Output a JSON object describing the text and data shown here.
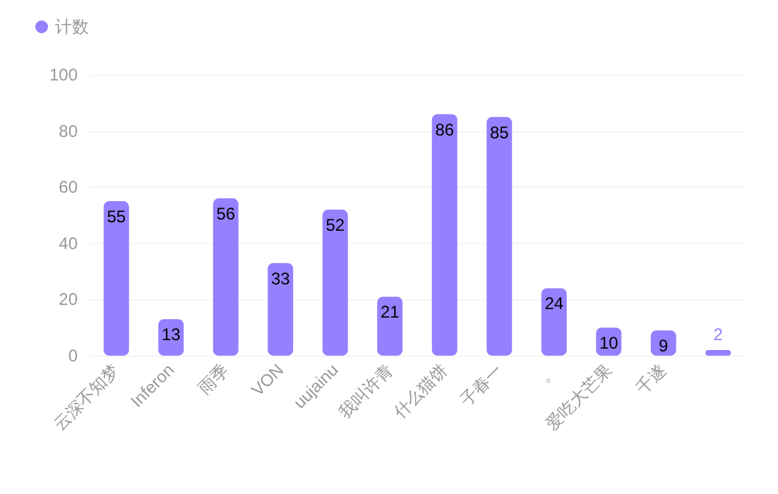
{
  "chart_data": {
    "type": "bar",
    "categories": [
      "云深不知梦",
      "Inferon",
      "雨季",
      "VON",
      "uujainu",
      "我叫许青",
      "什么猫饼",
      "子春一",
      "。",
      "爱吃大芒果",
      "千遂",
      null
    ],
    "series": [
      {
        "name": "计数",
        "color": "#9580ff",
        "values": [
          55,
          13,
          56,
          33,
          52,
          21,
          86,
          85,
          24,
          10,
          9,
          2
        ]
      }
    ],
    "ylim": [
      0,
      100
    ],
    "yticks": [
      0,
      20,
      40,
      60,
      80,
      100
    ],
    "grid": "y",
    "legend": "top left",
    "data_labels": true
  }
}
